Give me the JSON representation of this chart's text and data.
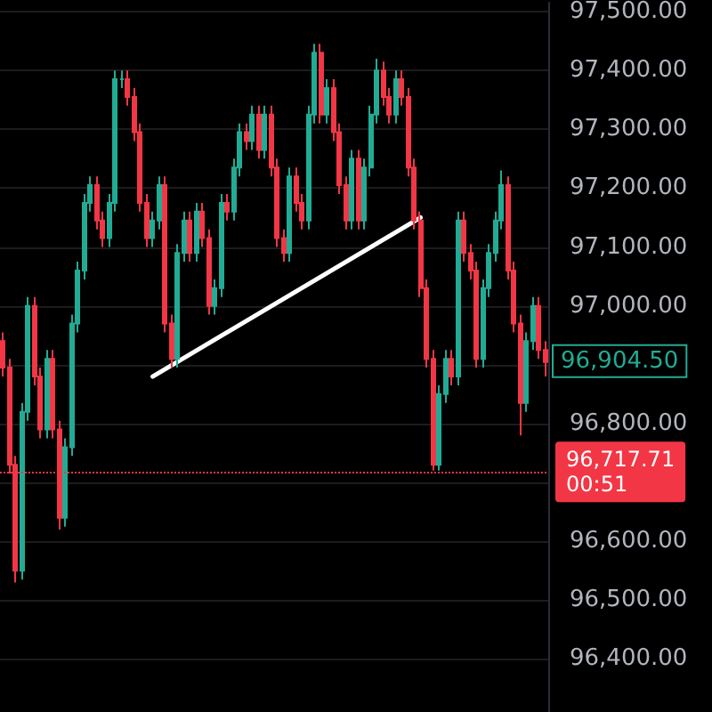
{
  "chart_data": {
    "type": "candlestick",
    "grid": "y",
    "tick_labels": "y",
    "categories": [
      null,
      null,
      null,
      null,
      null,
      null,
      null,
      null,
      null,
      null,
      null,
      null,
      null,
      null,
      null,
      null,
      null,
      null,
      null,
      null,
      null,
      null,
      null,
      null,
      null,
      null,
      null,
      null,
      null,
      null,
      null,
      null,
      null,
      null,
      null,
      null,
      null,
      null,
      null,
      null,
      null,
      null,
      null,
      null,
      null,
      null,
      null,
      null,
      null,
      null,
      null,
      null,
      null,
      null,
      null,
      null,
      null,
      null,
      null,
      null,
      null,
      null,
      null,
      null,
      null,
      null,
      null,
      null,
      null,
      null,
      null,
      null,
      null,
      null,
      null,
      null,
      null,
      null,
      null,
      null,
      null,
      null,
      null,
      null,
      null,
      null,
      null,
      null
    ],
    "ylim": [
      96310,
      97515
    ],
    "yticks": [
      {
        "value": 96400,
        "label": "96,400.00"
      },
      {
        "value": 96500,
        "label": "96,500.00"
      },
      {
        "value": 96600,
        "label": "96,600.00"
      },
      {
        "value": 96700,
        "label": null
      },
      {
        "value": 96800,
        "label": "96,800.00"
      },
      {
        "value": 96900,
        "label": null
      },
      {
        "value": 97000,
        "label": "97,000.00"
      },
      {
        "value": 97100,
        "label": "97,100.00"
      },
      {
        "value": 97200,
        "label": "97,200.00"
      },
      {
        "value": 97300,
        "label": "97,300.00"
      },
      {
        "value": 97400,
        "label": "97,400.00"
      },
      {
        "value": 97500,
        "label": "97,500.00"
      }
    ],
    "series": [
      {
        "type": "candlestick",
        "colors": [
          "#f23645",
          "#f23645",
          "#f23645",
          "#22ab94",
          "#22ab94",
          "#f23645",
          "#f23645",
          "#22ab94",
          "#f23645",
          "#f23645",
          "#22ab94",
          "#22ab94",
          "#22ab94",
          "#22ab94",
          "#22ab94",
          "#f23645",
          "#f23645",
          "#22ab94",
          "#22ab94",
          "#22ab94",
          "#f23645",
          "#f23645",
          "#f23645",
          "#f23645",
          "#22ab94",
          "#22ab94",
          "#f23645",
          "#f23645",
          "#22ab94",
          "#22ab94",
          "#f23645",
          "#22ab94",
          "#f23645",
          "#f23645",
          "#22ab94",
          "#22ab94",
          "#f23645",
          "#22ab94",
          "#22ab94",
          "#f23645",
          "#22ab94",
          "#f23645",
          "#22ab94",
          "#f23645",
          "#f23645",
          "#f23645",
          "#22ab94",
          "#f23645",
          "#f23645",
          "#22ab94",
          "#22ab94",
          "#f23645",
          "#22ab94",
          "#f23645",
          "#f23645",
          "#f23645",
          "#22ab94",
          "#f23645",
          "#22ab94",
          "#22ab94",
          "#22ab94",
          "#f23645",
          "#f23645",
          "#22ab94",
          "#f23645",
          "#f23645",
          "#f23645",
          "#f23645",
          "#f23645",
          "#f23645",
          "#22ab94",
          "#22ab94",
          "#f23645",
          "#22ab94",
          "#f23645",
          "#f23645",
          "#f23645",
          "#22ab94",
          "#22ab94",
          "#22ab94",
          "#22ab94",
          "#f23645",
          "#f23645",
          "#f23645",
          "#22ab94",
          "#22ab94",
          "#f23645",
          "#f23645"
        ],
        "ohlc": [
          [
            96940,
            96955,
            96880,
            96895
          ],
          [
            96895,
            96910,
            96715,
            96730
          ],
          [
            96730,
            96745,
            96530,
            96550
          ],
          [
            96550,
            96835,
            96535,
            96820
          ],
          [
            96820,
            97015,
            96805,
            97000
          ],
          [
            97000,
            97015,
            96865,
            96880
          ],
          [
            96880,
            96895,
            96775,
            96790
          ],
          [
            96790,
            96925,
            96775,
            96910
          ],
          [
            96910,
            96925,
            96775,
            96790
          ],
          [
            96790,
            96805,
            96620,
            96640
          ],
          [
            96640,
            96775,
            96625,
            96760
          ],
          [
            96760,
            96985,
            96745,
            96970
          ],
          [
            96970,
            97075,
            96955,
            97060
          ],
          [
            97060,
            97190,
            97045,
            97175
          ],
          [
            97175,
            97220,
            97160,
            97205
          ],
          [
            97205,
            97220,
            97130,
            97145
          ],
          [
            97145,
            97160,
            97100,
            97115
          ],
          [
            97115,
            97190,
            97100,
            97175
          ],
          [
            97175,
            97400,
            97160,
            97385
          ],
          [
            97385,
            97400,
            97370,
            97385
          ],
          [
            97385,
            97400,
            97340,
            97355
          ],
          [
            97355,
            97370,
            97280,
            97295
          ],
          [
            97295,
            97310,
            97160,
            97175
          ],
          [
            97175,
            97190,
            97100,
            97115
          ],
          [
            97115,
            97160,
            97100,
            97145
          ],
          [
            97145,
            97220,
            97130,
            97205
          ],
          [
            97205,
            97220,
            96955,
            96970
          ],
          [
            96970,
            96985,
            96895,
            96910
          ],
          [
            96910,
            97105,
            96895,
            97090
          ],
          [
            97090,
            97160,
            97075,
            97145
          ],
          [
            97145,
            97160,
            97075,
            97090
          ],
          [
            97090,
            97175,
            97075,
            97160
          ],
          [
            97160,
            97175,
            97100,
            97115
          ],
          [
            97115,
            97130,
            96985,
            97000
          ],
          [
            97000,
            97045,
            96985,
            97030
          ],
          [
            97030,
            97190,
            97015,
            97175
          ],
          [
            97175,
            97190,
            97145,
            97160
          ],
          [
            97160,
            97250,
            97145,
            97235
          ],
          [
            97235,
            97310,
            97220,
            97295
          ],
          [
            97295,
            97310,
            97265,
            97280
          ],
          [
            97280,
            97340,
            97265,
            97325
          ],
          [
            97325,
            97340,
            97250,
            97265
          ],
          [
            97265,
            97340,
            97250,
            97325
          ],
          [
            97325,
            97340,
            97220,
            97235
          ],
          [
            97235,
            97250,
            97100,
            97115
          ],
          [
            97115,
            97130,
            97075,
            97090
          ],
          [
            97090,
            97235,
            97075,
            97220
          ],
          [
            97220,
            97235,
            97160,
            97175
          ],
          [
            97175,
            97190,
            97130,
            97145
          ],
          [
            97145,
            97340,
            97130,
            97325
          ],
          [
            97325,
            97445,
            97310,
            97430
          ],
          [
            97430,
            97445,
            97310,
            97325
          ],
          [
            97325,
            97385,
            97310,
            97370
          ],
          [
            97370,
            97385,
            97280,
            97295
          ],
          [
            97295,
            97310,
            97190,
            97205
          ],
          [
            97205,
            97220,
            97130,
            97145
          ],
          [
            97145,
            97265,
            97130,
            97250
          ],
          [
            97250,
            97265,
            97130,
            97145
          ],
          [
            97145,
            97250,
            97130,
            97235
          ],
          [
            97235,
            97340,
            97220,
            97325
          ],
          [
            97325,
            97420,
            97310,
            97400
          ],
          [
            97400,
            97415,
            97340,
            97355
          ],
          [
            97355,
            97370,
            97310,
            97325
          ],
          [
            97325,
            97400,
            97310,
            97385
          ],
          [
            97385,
            97400,
            97340,
            97355
          ],
          [
            97355,
            97370,
            97220,
            97235
          ],
          [
            97235,
            97250,
            97130,
            97145
          ],
          [
            97145,
            97160,
            97015,
            97030
          ],
          [
            97030,
            97045,
            96895,
            96910
          ],
          [
            96910,
            96925,
            96720,
            96730
          ],
          [
            96730,
            96865,
            96720,
            96850
          ],
          [
            96850,
            96925,
            96835,
            96910
          ],
          [
            96910,
            96925,
            96865,
            96880
          ],
          [
            96880,
            97160,
            96865,
            97145
          ],
          [
            97145,
            97160,
            97075,
            97090
          ],
          [
            97090,
            97105,
            97045,
            97060
          ],
          [
            97060,
            97075,
            96895,
            96910
          ],
          [
            96910,
            97045,
            96895,
            97030
          ],
          [
            97030,
            97105,
            97015,
            97090
          ],
          [
            97090,
            97160,
            97075,
            97145
          ],
          [
            97145,
            97230,
            97130,
            97205
          ],
          [
            97205,
            97220,
            97045,
            97060
          ],
          [
            97060,
            97075,
            96955,
            96970
          ],
          [
            96970,
            96985,
            96780,
            96835
          ],
          [
            96835,
            96955,
            96820,
            96940
          ],
          [
            96940,
            97015,
            96925,
            97000
          ],
          [
            97000,
            97015,
            96910,
            96925
          ],
          [
            96925,
            96940,
            96880,
            96904.5
          ]
        ]
      },
      {
        "type": "line",
        "color": "#ffffff",
        "values": [
          null,
          null,
          null,
          null,
          null,
          null,
          null,
          null,
          null,
          null,
          null,
          null,
          null,
          null,
          null,
          null,
          null,
          null,
          null,
          null,
          null,
          null,
          null,
          null,
          96880,
          null,
          null,
          null,
          null,
          null,
          null,
          null,
          null,
          null,
          null,
          null,
          null,
          null,
          null,
          null,
          null,
          null,
          null,
          null,
          null,
          null,
          null,
          null,
          null,
          null,
          null,
          null,
          null,
          null,
          null,
          null,
          null,
          null,
          null,
          null,
          null,
          null,
          null,
          null,
          null,
          null,
          null,
          97150,
          null,
          null,
          null,
          null,
          null,
          null,
          null,
          null,
          null,
          null,
          null,
          null,
          null,
          null,
          null,
          null,
          null,
          null,
          null,
          null
        ]
      }
    ],
    "ref_lines": [
      {
        "axis": "y",
        "value": 96717.71,
        "label": "96,717.71",
        "color": "#f23645",
        "line_style": "dotted"
      }
    ],
    "annotations": [
      "96,904.50",
      "00:51"
    ]
  }
}
